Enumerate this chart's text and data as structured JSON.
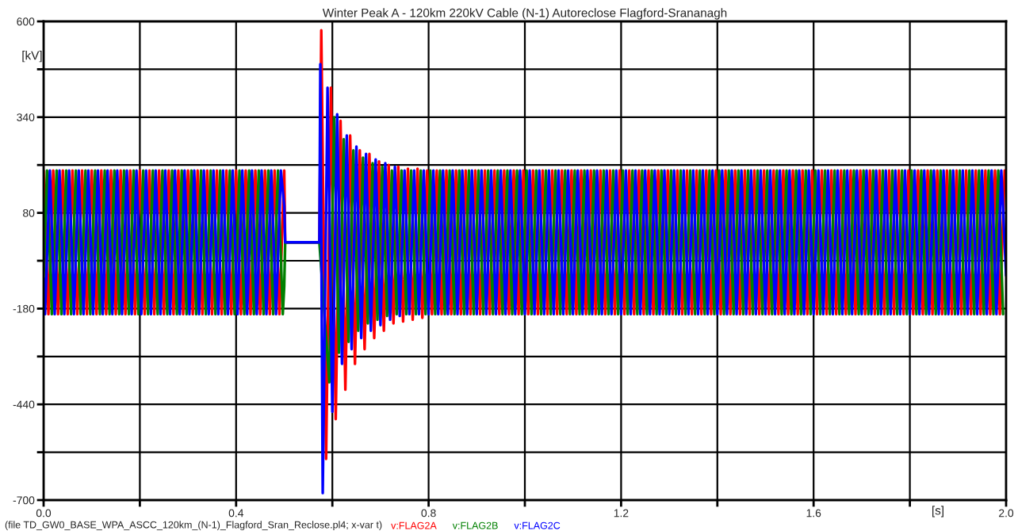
{
  "chart_data": {
    "type": "line",
    "title": "Winter Peak A - 120km 220kV Cable (N-1) Autoreclose Flagford-Srananagh",
    "xlabel": "[s]",
    "ylabel": "[kV]",
    "annotations": [
      "(file TD_GW0_BASE_WPA_ASCC_120km_(N-1)_Flagford_Sran_Reclose.pl4; x-var t)"
    ],
    "xlim": [
      0,
      2
    ],
    "ylim": [
      -700,
      600
    ],
    "xticks": [
      {
        "value": 0,
        "label": "0.0"
      },
      {
        "value": 0.2,
        "label": null
      },
      0.4,
      {
        "value": 0.6,
        "label": null
      },
      0.8,
      {
        "value": 1.0,
        "label": null
      },
      1.2,
      {
        "value": 1.4,
        "label": null
      },
      1.6,
      {
        "value": 1.8,
        "label": null
      },
      {
        "value": 2,
        "label": "2.0"
      }
    ],
    "yticks": [
      -700,
      {
        "value": -570,
        "label": null
      },
      -440,
      {
        "value": -310,
        "label": null
      },
      -180,
      {
        "value": -50,
        "label": null
      },
      80,
      {
        "value": 210,
        "label": null
      },
      340,
      {
        "value": 470,
        "label": null
      },
      600
    ],
    "grid": true,
    "legend": "bottom",
    "series": [
      {
        "name": "v:FLAG2A",
        "color": "#ff0000",
        "x": [
          0,
          0.01,
          0.02,
          0.03,
          0.04,
          0.05,
          0.06,
          0.07,
          0.08,
          0.09,
          0.1,
          0.11,
          0.12,
          0.13,
          0.14,
          0.15,
          0.16,
          0.17,
          0.18,
          0.19,
          0.2,
          0.21,
          0.22,
          0.23,
          0.24,
          0.25,
          0.26,
          0.27,
          0.28,
          0.29,
          0.3,
          0.31,
          0.32,
          0.33,
          0.34,
          0.35,
          0.36,
          0.37,
          0.38,
          0.39,
          0.4,
          0.41,
          0.42,
          0.43,
          0.44,
          0.45,
          0.46,
          0.47,
          0.48,
          0.49,
          0.5,
          0.502,
          0.573,
          0.577,
          0.587,
          0.597,
          0.607,
          0.617,
          0.627,
          0.637,
          0.647,
          0.657,
          0.667,
          0.677,
          0.687,
          0.697,
          0.707,
          0.717,
          0.727,
          0.737,
          0.747,
          0.757,
          0.767,
          0.777,
          0.787,
          0.797,
          0.807,
          0.817,
          0.827,
          0.837,
          0.847,
          0.857,
          0.867,
          0.877,
          0.887,
          0.897,
          0.907,
          0.917,
          0.927,
          0.937,
          0.947,
          0.957,
          0.967,
          0.977,
          0.987,
          0.997,
          1.007,
          1.017,
          1.027,
          1.037,
          1.047,
          1.057,
          1.067,
          1.077,
          1.087,
          1.097,
          1.107,
          1.117,
          1.127,
          1.137,
          1.147,
          1.157,
          1.167,
          1.177,
          1.187,
          1.197,
          1.207,
          1.217,
          1.227,
          1.237,
          1.247,
          1.257,
          1.267,
          1.277,
          1.287,
          1.297,
          1.307,
          1.317,
          1.327,
          1.337,
          1.347,
          1.357,
          1.367,
          1.377,
          1.387,
          1.397,
          1.407,
          1.417,
          1.427,
          1.437,
          1.447,
          1.457,
          1.467,
          1.477,
          1.487,
          1.497,
          1.507,
          1.517,
          1.527,
          1.537,
          1.547,
          1.557,
          1.567,
          1.577,
          1.587,
          1.597,
          1.607,
          1.617,
          1.627,
          1.637,
          1.647,
          1.657,
          1.667,
          1.677,
          1.687,
          1.697,
          1.707,
          1.717,
          1.727,
          1.737,
          1.747,
          1.757,
          1.767,
          1.777,
          1.787,
          1.797,
          1.807,
          1.817,
          1.827,
          1.837,
          1.847,
          1.857,
          1.867,
          1.877,
          1.887,
          1.897,
          1.907,
          1.917,
          1.927,
          1.937,
          1.947,
          1.957,
          1.967,
          1.977,
          1.987,
          1.997,
          2.0
        ],
        "values": [
          195,
          -195,
          195,
          -195,
          195,
          -195,
          195,
          -195,
          195,
          -195,
          195,
          -195,
          195,
          -195,
          195,
          -195,
          195,
          -195,
          195,
          -195,
          195,
          -195,
          195,
          -195,
          195,
          -195,
          195,
          -195,
          195,
          -195,
          195,
          -195,
          195,
          -195,
          195,
          -195,
          195,
          -195,
          195,
          -195,
          195,
          -195,
          195,
          -195,
          195,
          -195,
          195,
          -195,
          195,
          -195,
          195,
          0,
          0,
          576,
          -588,
          420,
          -480,
          330,
          -400,
          290,
          -330,
          250,
          -290,
          240,
          -260,
          220,
          -240,
          210,
          -220,
          205,
          -215,
          200,
          -210,
          200,
          -205,
          195,
          -195,
          195,
          -195,
          195,
          -195,
          195,
          -195,
          195,
          -195,
          195,
          -195,
          195,
          -195,
          195,
          -195,
          195,
          -195,
          195,
          -195,
          195,
          -195,
          195,
          -195,
          195,
          -195,
          195,
          -195,
          195,
          -195,
          195,
          -195,
          195,
          -195,
          195,
          -195,
          195,
          -195,
          195,
          -195,
          195,
          -195,
          195,
          -195,
          195,
          -195,
          195,
          -195,
          195,
          -195,
          195,
          -195,
          195,
          -195,
          195,
          -195,
          195,
          -195,
          195,
          -195,
          195,
          -195,
          195,
          -195,
          195,
          -195,
          195,
          -195,
          195,
          -195,
          195,
          -195,
          195,
          -195,
          195,
          -195,
          195,
          -195,
          195,
          -195,
          195,
          -195,
          195,
          -195,
          195,
          -195,
          195,
          -195,
          195,
          -195,
          195,
          -195,
          195,
          -195,
          195,
          -195,
          195,
          -195,
          195,
          -195,
          195,
          -195,
          195,
          -195,
          195,
          -195,
          195,
          -195,
          195,
          -195,
          195,
          -195,
          195,
          -195,
          195,
          -195,
          195,
          -195,
          195,
          -195,
          195,
          180
        ]
      },
      {
        "name": "v:FLAG2B",
        "color": "#008000",
        "x": [
          0,
          0.007,
          0.017,
          0.027,
          0.037,
          0.047,
          0.057,
          0.067,
          0.077,
          0.087,
          0.097,
          0.107,
          0.117,
          0.127,
          0.137,
          0.147,
          0.157,
          0.167,
          0.177,
          0.187,
          0.197,
          0.207,
          0.217,
          0.227,
          0.237,
          0.247,
          0.257,
          0.267,
          0.277,
          0.287,
          0.297,
          0.307,
          0.317,
          0.327,
          0.337,
          0.347,
          0.357,
          0.367,
          0.377,
          0.387,
          0.397,
          0.407,
          0.417,
          0.427,
          0.437,
          0.447,
          0.457,
          0.467,
          0.477,
          0.487,
          0.497,
          0.5,
          0.502,
          0.573,
          0.5937,
          0.6037,
          0.6137,
          0.6237,
          0.6337,
          0.6437,
          0.6537,
          0.6637,
          0.6737,
          0.6837,
          0.6937,
          0.7037,
          0.7137,
          0.7237,
          0.7337,
          0.7437,
          0.7537,
          0.7637,
          0.7737,
          0.7837,
          0.7937,
          0.8037,
          0.8137,
          0.8237,
          0.8337,
          0.8437,
          0.8537,
          0.8637,
          0.8737,
          0.8837,
          0.8937,
          0.9037,
          0.9137,
          0.9237,
          0.9337,
          0.9437,
          0.9537,
          0.9637,
          0.9737,
          0.9837,
          0.9937,
          1.0037,
          1.0137,
          1.0237,
          1.0337,
          1.0437,
          1.0537,
          1.0637,
          1.0737,
          1.0837,
          1.0937,
          1.1037,
          1.1137,
          1.1237,
          1.1337,
          1.1437,
          1.1537,
          1.1637,
          1.1737,
          1.1837,
          1.1937,
          1.2037,
          1.2137,
          1.2237,
          1.2337,
          1.2437,
          1.2537,
          1.2637,
          1.2737,
          1.2837,
          1.2937,
          1.3037,
          1.3137,
          1.3237,
          1.3337,
          1.3437,
          1.3537,
          1.3637,
          1.3737,
          1.3837,
          1.3937,
          1.4037,
          1.4137,
          1.4237,
          1.4337,
          1.4437,
          1.4537,
          1.4637,
          1.4737,
          1.4837,
          1.4937,
          1.5037,
          1.5137,
          1.5237,
          1.5337,
          1.5437,
          1.5537,
          1.5637,
          1.5737,
          1.5837,
          1.5937,
          1.6037,
          1.6137,
          1.6237,
          1.6337,
          1.6437,
          1.6537,
          1.6637,
          1.6737,
          1.6837,
          1.6937,
          1.7037,
          1.7137,
          1.7237,
          1.7337,
          1.7437,
          1.7537,
          1.7637,
          1.7737,
          1.7837,
          1.7937,
          1.8037,
          1.8137,
          1.8237,
          1.8337,
          1.8437,
          1.8537,
          1.8637,
          1.8737,
          1.8837,
          1.8937,
          1.9037,
          1.9137,
          1.9237,
          1.9337,
          1.9437,
          1.9537,
          1.9637,
          1.9737,
          1.9837,
          1.9937
        ],
        "values": [
          -97,
          195,
          -195,
          195,
          -195,
          195,
          -195,
          195,
          -195,
          195,
          -195,
          195,
          -195,
          195,
          -195,
          195,
          -195,
          195,
          -195,
          195,
          -195,
          195,
          -195,
          195,
          -195,
          195,
          -195,
          195,
          -195,
          195,
          -195,
          195,
          -195,
          195,
          -195,
          195,
          -195,
          195,
          -195,
          195,
          -195,
          195,
          -195,
          195,
          -195,
          195,
          -195,
          195,
          -195,
          195,
          -195,
          -120,
          0,
          0,
          -380,
          340,
          -300,
          280,
          -270,
          250,
          -240,
          230,
          -220,
          215,
          -210,
          205,
          -200,
          195,
          -195,
          195,
          -195,
          195,
          -195,
          195,
          -195,
          195,
          -195,
          195,
          -195,
          195,
          -195,
          195,
          -195,
          195,
          -195,
          195,
          -195,
          195,
          -195,
          195,
          -195,
          195,
          -195,
          195,
          -195,
          195,
          -195,
          195,
          -195,
          195,
          -195,
          195,
          -195,
          195,
          -195,
          195,
          -195,
          195,
          -195,
          195,
          -195,
          195,
          -195,
          195,
          -195,
          195,
          -195,
          195,
          -195,
          195,
          -195,
          195,
          -195,
          195,
          -195,
          195,
          -195,
          195,
          -195,
          195,
          -195,
          195,
          -195,
          195,
          -195,
          195,
          -195,
          195,
          -195,
          195,
          -195,
          195,
          -195,
          195,
          -195,
          195,
          -195,
          195,
          -195,
          195,
          -195,
          195,
          -195,
          195,
          -195,
          195,
          -195,
          195,
          -195,
          195,
          -195,
          195,
          -195,
          195,
          -195,
          195,
          -195,
          195,
          -195,
          195,
          -195,
          195,
          -195,
          195,
          -195,
          195,
          -195,
          195,
          -195,
          195,
          -195,
          195,
          -195,
          195,
          -195,
          195,
          -195,
          195,
          -195,
          195,
          -195,
          195,
          -195,
          195,
          -195
        ]
      },
      {
        "name": "v:FLAG2C",
        "color": "#0000ff",
        "x": [
          0,
          0.003,
          0.013,
          0.023,
          0.033,
          0.043,
          0.053,
          0.063,
          0.073,
          0.083,
          0.093,
          0.103,
          0.113,
          0.123,
          0.133,
          0.143,
          0.153,
          0.163,
          0.173,
          0.183,
          0.193,
          0.203,
          0.213,
          0.223,
          0.233,
          0.243,
          0.253,
          0.263,
          0.273,
          0.283,
          0.293,
          0.303,
          0.313,
          0.323,
          0.333,
          0.343,
          0.353,
          0.363,
          0.373,
          0.383,
          0.393,
          0.403,
          0.413,
          0.423,
          0.433,
          0.443,
          0.453,
          0.463,
          0.473,
          0.483,
          0.493,
          0.5,
          0.502,
          0.573,
          0.575,
          0.58,
          0.59,
          0.6,
          0.61,
          0.62,
          0.63,
          0.64,
          0.65,
          0.66,
          0.67,
          0.68,
          0.69,
          0.7,
          0.71,
          0.72,
          0.73,
          0.74,
          0.75,
          0.76,
          0.77,
          0.78,
          0.79,
          0.8,
          0.81,
          0.82,
          0.83,
          0.84,
          0.85,
          0.86,
          0.87,
          0.88,
          0.89,
          0.9,
          0.91,
          0.92,
          0.93,
          0.94,
          0.95,
          0.96,
          0.97,
          0.98,
          0.99,
          1.0,
          1.01,
          1.02,
          1.03,
          1.04,
          1.05,
          1.06,
          1.07,
          1.08,
          1.09,
          1.1,
          1.11,
          1.12,
          1.13,
          1.14,
          1.15,
          1.16,
          1.17,
          1.18,
          1.19,
          1.2,
          1.21,
          1.22,
          1.23,
          1.24,
          1.25,
          1.26,
          1.27,
          1.28,
          1.29,
          1.3,
          1.31,
          1.32,
          1.33,
          1.34,
          1.35,
          1.36,
          1.37,
          1.38,
          1.39,
          1.4,
          1.41,
          1.42,
          1.43,
          1.44,
          1.45,
          1.46,
          1.47,
          1.48,
          1.49,
          1.5,
          1.51,
          1.52,
          1.53,
          1.54,
          1.55,
          1.56,
          1.57,
          1.58,
          1.59,
          1.6,
          1.61,
          1.62,
          1.63,
          1.64,
          1.65,
          1.66,
          1.67,
          1.68,
          1.69,
          1.7,
          1.71,
          1.72,
          1.73,
          1.74,
          1.75,
          1.76,
          1.77,
          1.78,
          1.79,
          1.8,
          1.81,
          1.82,
          1.83,
          1.84,
          1.85,
          1.86,
          1.87,
          1.88,
          1.89,
          1.9,
          1.91,
          1.92,
          1.93,
          1.94,
          1.95,
          1.96,
          1.97,
          1.98,
          1.99,
          2.0
        ],
        "values": [
          -97,
          -195,
          195,
          -195,
          195,
          -195,
          195,
          -195,
          195,
          -195,
          195,
          -195,
          195,
          -195,
          195,
          -195,
          195,
          -195,
          195,
          -195,
          195,
          -195,
          195,
          -195,
          195,
          -195,
          195,
          -195,
          195,
          -195,
          195,
          -195,
          195,
          -195,
          195,
          -195,
          195,
          -195,
          195,
          -195,
          195,
          -195,
          195,
          -195,
          195,
          -195,
          195,
          -195,
          195,
          -195,
          195,
          100,
          0,
          0,
          484,
          -681,
          420,
          -460,
          348,
          -330,
          290,
          -290,
          260,
          -260,
          240,
          -240,
          225,
          -225,
          215,
          -210,
          205,
          -200,
          195,
          -195,
          195,
          -195,
          195,
          -195,
          195,
          -195,
          195,
          -195,
          195,
          -195,
          195,
          -195,
          195,
          -195,
          195,
          -195,
          195,
          -195,
          195,
          -195,
          195,
          -195,
          195,
          -195,
          195,
          -195,
          195,
          -195,
          195,
          -195,
          195,
          -195,
          195,
          -195,
          195,
          -195,
          195,
          -195,
          195,
          -195,
          195,
          -195,
          195,
          -195,
          195,
          -195,
          195,
          -195,
          195,
          -195,
          195,
          -195,
          195,
          -195,
          195,
          -195,
          195,
          -195,
          195,
          -195,
          195,
          -195,
          195,
          -195,
          195,
          -195,
          195,
          -195,
          195,
          -195,
          195,
          -195,
          195,
          -195,
          195,
          -195,
          195,
          -195,
          195,
          -195,
          195,
          -195,
          195,
          -195,
          195,
          -195,
          195,
          -195,
          195,
          -195,
          195,
          -195,
          195,
          -195,
          195,
          -195,
          195,
          -195,
          195,
          -195,
          195,
          -195,
          195,
          -195,
          195,
          -195,
          195,
          -195,
          195,
          -195,
          195,
          -195,
          195,
          -195,
          195,
          -195,
          195,
          -195,
          195,
          -195,
          195,
          -195,
          195,
          -90
        ]
      }
    ]
  }
}
